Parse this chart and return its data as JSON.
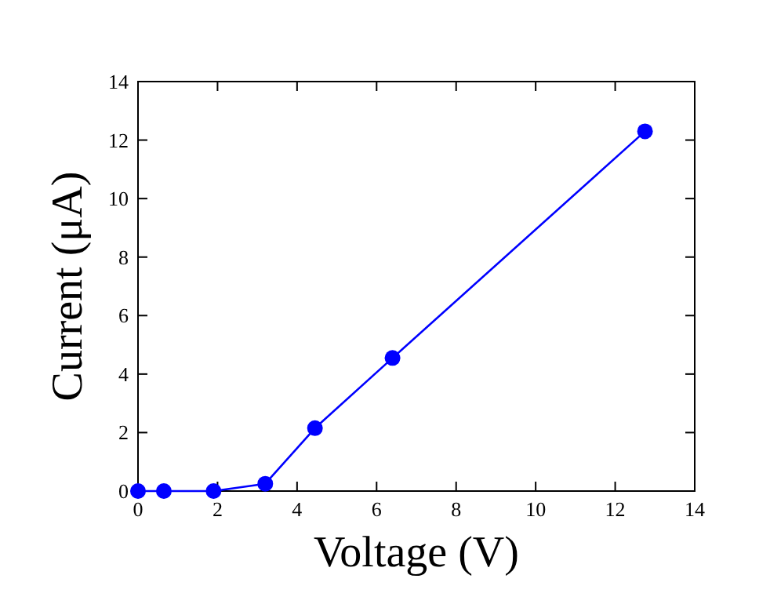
{
  "chart_data": {
    "type": "line",
    "xlabel": "Voltage (V)",
    "ylabel": "Current (μA)",
    "x": [
      0,
      0.65,
      1.9,
      3.2,
      4.45,
      6.4,
      12.75
    ],
    "series": [
      {
        "color": "#0000ff",
        "values": [
          0,
          0,
          0,
          0.25,
          2.15,
          4.55,
          12.3
        ]
      }
    ],
    "xlim": [
      0,
      14
    ],
    "ylim": [
      0,
      14
    ],
    "xticks": [
      0,
      2,
      4,
      6,
      8,
      10,
      12,
      14
    ],
    "yticks": [
      0,
      2,
      4,
      6,
      8,
      10,
      12,
      14
    ],
    "marker": "circle",
    "line_style": "solid"
  }
}
